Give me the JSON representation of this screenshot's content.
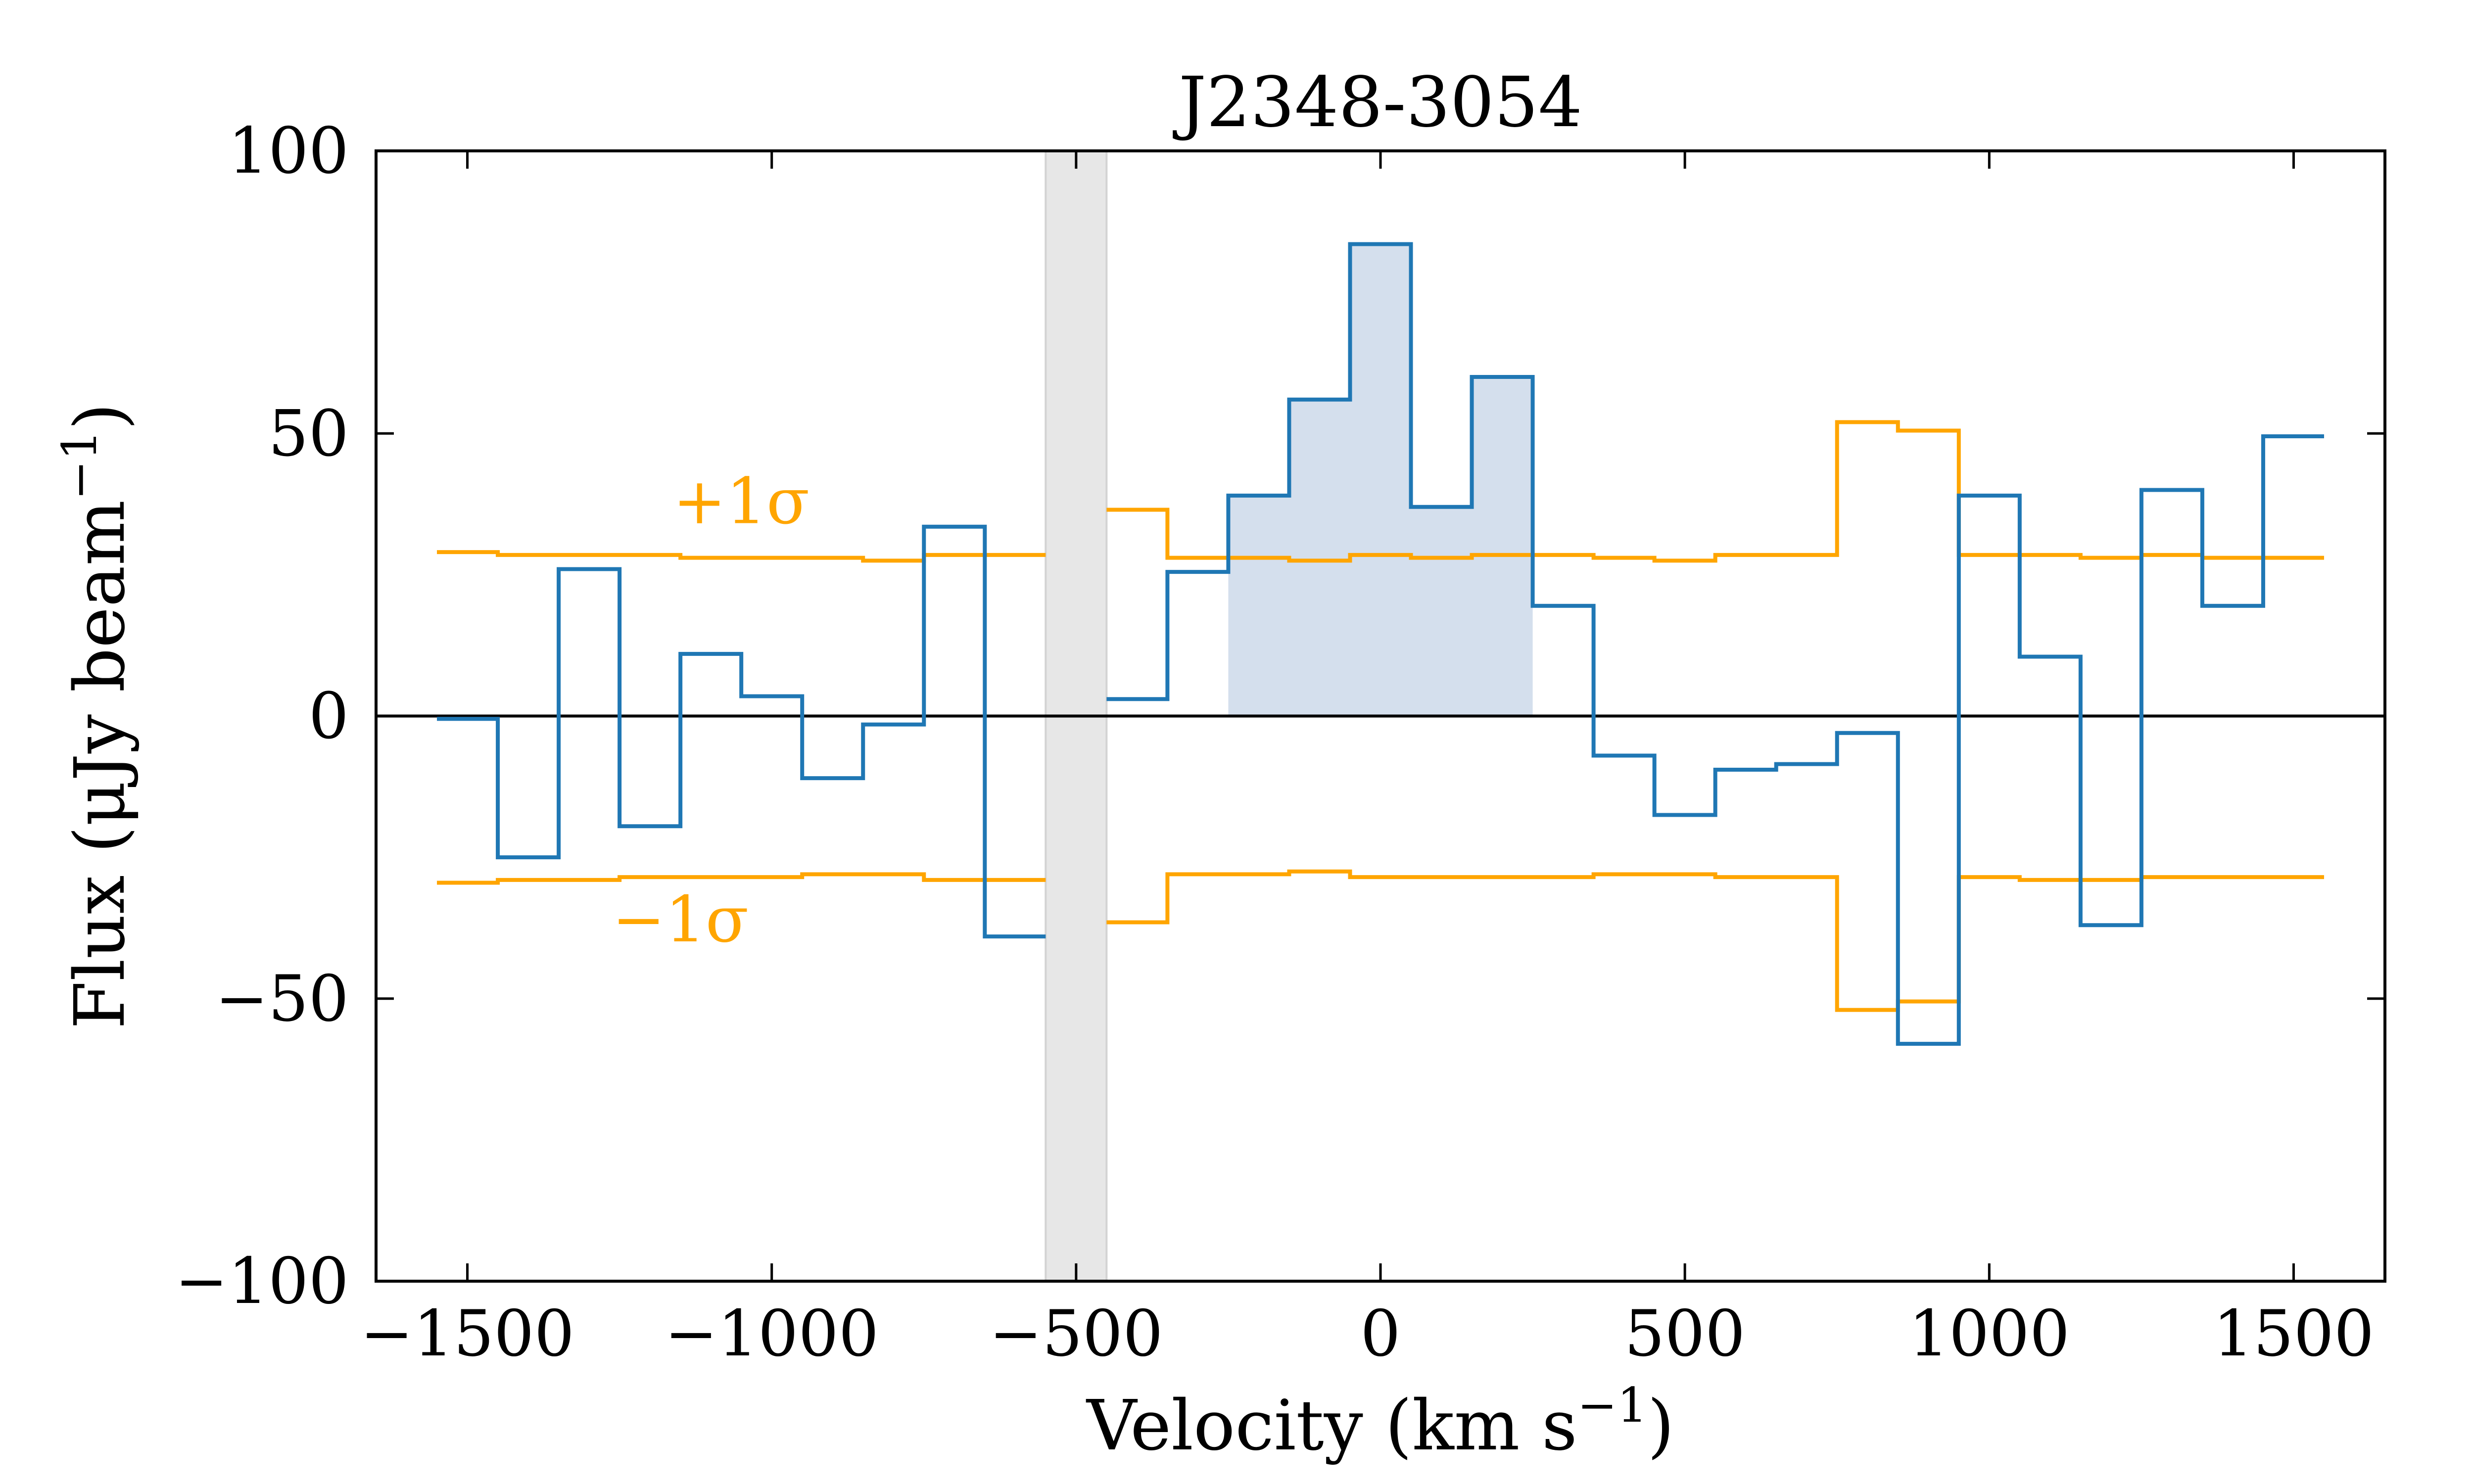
{
  "chart_data": {
    "type": "line",
    "title": "J2348-3054",
    "xlabel_parts": {
      "main": "Velocity (km s",
      "sup": "−1",
      "close": ")"
    },
    "ylabel_parts": {
      "main": "Flux (μJy beam",
      "sup": "−1",
      "close": ")"
    },
    "xlim": [
      -1650,
      1650
    ],
    "ylim": [
      -100,
      100
    ],
    "xticks": [
      -1500,
      -1000,
      -500,
      0,
      500,
      1000,
      1500
    ],
    "xtick_labels": [
      "−1500",
      "−1000",
      "−500",
      "0",
      "500",
      "1000",
      "1500"
    ],
    "yticks": [
      -100,
      -50,
      0,
      50,
      100
    ],
    "ytick_labels": [
      "−100",
      "−50",
      "0",
      "50",
      "100"
    ],
    "colors": {
      "flux": "#1f77b4",
      "sigma": "#ffa500",
      "fill": "#b0c4de",
      "masked": "#d3d3d3",
      "zero_line": "#000000"
    },
    "masked_region": [
      -550,
      -450
    ],
    "fill_range": [
      -250,
      250
    ],
    "bin_width": 100,
    "series": [
      {
        "key": "flux",
        "segments": [
          {
            "centers": [
              -1500,
              -1400,
              -1300,
              -1200,
              -1100,
              -1000,
              -900,
              -800,
              -700,
              -600
            ],
            "values": [
              -0.5,
              -25,
              26,
              -19.5,
              11,
              3.5,
              -11,
              -1.5,
              33.5,
              -39
            ]
          },
          {
            "centers": [
              -400,
              -300,
              -200,
              -100,
              0,
              100,
              200,
              300,
              400,
              500,
              600,
              700,
              800,
              900,
              1000,
              1100,
              1200,
              1300,
              1400,
              1500
            ],
            "values": [
              3,
              25.5,
              39,
              56,
              83.5,
              37,
              60,
              19.5,
              -7,
              -17.5,
              -9.5,
              -8.5,
              -3,
              -58,
              39,
              10.5,
              -37,
              40,
              19.5,
              49.5
            ]
          }
        ]
      },
      {
        "key": "sigma_plus",
        "segments": [
          {
            "centers": [
              -1500,
              -1400,
              -1300,
              -1200,
              -1100,
              -1000,
              -900,
              -800,
              -700,
              -600
            ],
            "values": [
              29,
              28.5,
              28.5,
              28.5,
              28,
              28,
              28,
              27.5,
              28.5,
              28.5
            ]
          },
          {
            "centers": [
              -400,
              -300,
              -200,
              -100,
              0,
              100,
              200,
              300,
              400,
              500,
              600,
              700,
              800,
              900,
              1000,
              1100,
              1200,
              1300,
              1400,
              1500
            ],
            "values": [
              36.5,
              28,
              28,
              27.5,
              28.5,
              28,
              28.5,
              28.5,
              28,
              27.5,
              28.5,
              28.5,
              52,
              50.5,
              28.5,
              28.5,
              28,
              28.5,
              28,
              28
            ]
          }
        ]
      },
      {
        "key": "sigma_minus",
        "segments": [
          {
            "centers": [
              -1500,
              -1400,
              -1300,
              -1200,
              -1100,
              -1000,
              -900,
              -800,
              -700,
              -600
            ],
            "values": [
              -29.5,
              -29,
              -29,
              -28.5,
              -28.5,
              -28.5,
              -28,
              -28,
              -29,
              -29
            ]
          },
          {
            "centers": [
              -400,
              -300,
              -200,
              -100,
              0,
              100,
              200,
              300,
              400,
              500,
              600,
              700,
              800,
              900,
              1000,
              1100,
              1200,
              1300,
              1400,
              1500
            ],
            "values": [
              -36.5,
              -28,
              -28,
              -27.5,
              -28.5,
              -28.5,
              -28.5,
              -28.5,
              -28,
              -28,
              -28.5,
              -28.5,
              -52,
              -50.5,
              -28.5,
              -29,
              -29,
              -28.5,
              -28.5,
              -28.5
            ]
          }
        ]
      }
    ],
    "annotations": [
      {
        "key": "plus",
        "text": "+1σ",
        "x": -1050,
        "y": 38
      },
      {
        "key": "minus",
        "text": "−1σ",
        "x": -1150,
        "y": -36
      }
    ]
  }
}
